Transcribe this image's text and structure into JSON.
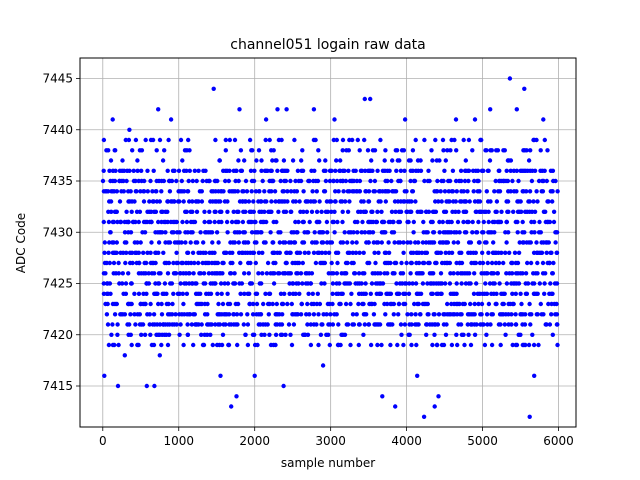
{
  "chart_data": {
    "type": "scatter",
    "title": "channel051 logain raw data",
    "xlabel": "sample number",
    "ylabel": "ADC Code",
    "xlim": [
      -300,
      6230
    ],
    "ylim": [
      7411,
      7447
    ],
    "xticks": [
      0,
      1000,
      2000,
      3000,
      4000,
      5000,
      6000
    ],
    "xtick_labels": [
      "0",
      "1000",
      "2000",
      "3000",
      "4000",
      "5000",
      "6000"
    ],
    "yticks": [
      7415,
      7420,
      7425,
      7430,
      7435,
      7440,
      7445
    ],
    "ytick_labels": [
      "7415",
      "7420",
      "7425",
      "7430",
      "7435",
      "7440",
      "7445"
    ],
    "grid": true,
    "marker_color": "#0000ff",
    "series": [
      {
        "sample_count": 6000,
        "dense_band": [
          7421,
          7436
        ],
        "typical_extremes": [
          7419,
          7439
        ],
        "outliers": [
          [
            20,
            7416
          ],
          [
            80,
            7419
          ],
          [
            130,
            7441
          ],
          [
            200,
            7415
          ],
          [
            290,
            7418
          ],
          [
            350,
            7440
          ],
          [
            580,
            7415
          ],
          [
            680,
            7415
          ],
          [
            730,
            7442
          ],
          [
            750,
            7418
          ],
          [
            900,
            7441
          ],
          [
            1460,
            7444
          ],
          [
            1550,
            7416
          ],
          [
            1690,
            7413
          ],
          [
            1760,
            7414
          ],
          [
            1800,
            7442
          ],
          [
            2000,
            7416
          ],
          [
            2150,
            7441
          ],
          [
            2300,
            7442
          ],
          [
            2380,
            7415
          ],
          [
            2420,
            7442
          ],
          [
            2780,
            7442
          ],
          [
            2900,
            7417
          ],
          [
            3050,
            7441
          ],
          [
            3450,
            7443
          ],
          [
            3520,
            7443
          ],
          [
            3680,
            7414
          ],
          [
            3850,
            7413
          ],
          [
            3980,
            7441
          ],
          [
            4140,
            7416
          ],
          [
            4230,
            7412
          ],
          [
            4370,
            7413
          ],
          [
            4420,
            7414
          ],
          [
            4650,
            7441
          ],
          [
            4900,
            7441
          ],
          [
            5100,
            7442
          ],
          [
            5360,
            7445
          ],
          [
            5450,
            7442
          ],
          [
            5550,
            7444
          ],
          [
            5620,
            7412
          ],
          [
            5680,
            7416
          ],
          [
            5800,
            7441
          ]
        ]
      }
    ]
  }
}
